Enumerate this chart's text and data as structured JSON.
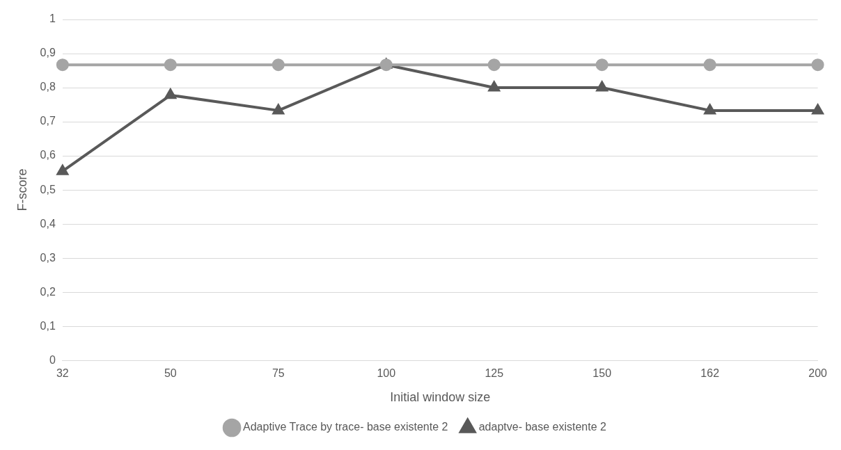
{
  "chart_data": {
    "type": "line",
    "xlabel": "Initial window size",
    "ylabel": "F-score",
    "categories": [
      "32",
      "50",
      "75",
      "100",
      "125",
      "150",
      "162",
      "200"
    ],
    "series": [
      {
        "name": "adaptve- base existente 2",
        "color": "#595959",
        "marker": "triangle",
        "values": [
          0.555,
          0.778,
          0.733,
          0.867,
          0.8,
          0.8,
          0.733,
          0.733
        ]
      },
      {
        "name": "Adaptive Trace by trace- base existente 2",
        "color": "#a5a5a5",
        "marker": "circle",
        "values": [
          0.867,
          0.867,
          0.867,
          0.867,
          0.867,
          0.867,
          0.867,
          0.867
        ]
      }
    ],
    "ylim": [
      0,
      1
    ],
    "yticks": [
      0,
      {
        "value": 0.1,
        "label": "0,1"
      },
      {
        "value": 0.2,
        "label": "0,2"
      },
      {
        "value": 0.3,
        "label": "0,3"
      },
      {
        "value": 0.4,
        "label": "0,4"
      },
      {
        "value": 0.5,
        "label": "0,5"
      },
      {
        "value": 0.6,
        "label": "0,6"
      },
      {
        "value": 0.7,
        "label": "0,7"
      },
      {
        "value": 0.8,
        "label": "0,8"
      },
      {
        "value": 0.9,
        "label": "0,9"
      },
      1
    ],
    "grid": "y",
    "legend": "bottom",
    "line_style": "solid"
  }
}
